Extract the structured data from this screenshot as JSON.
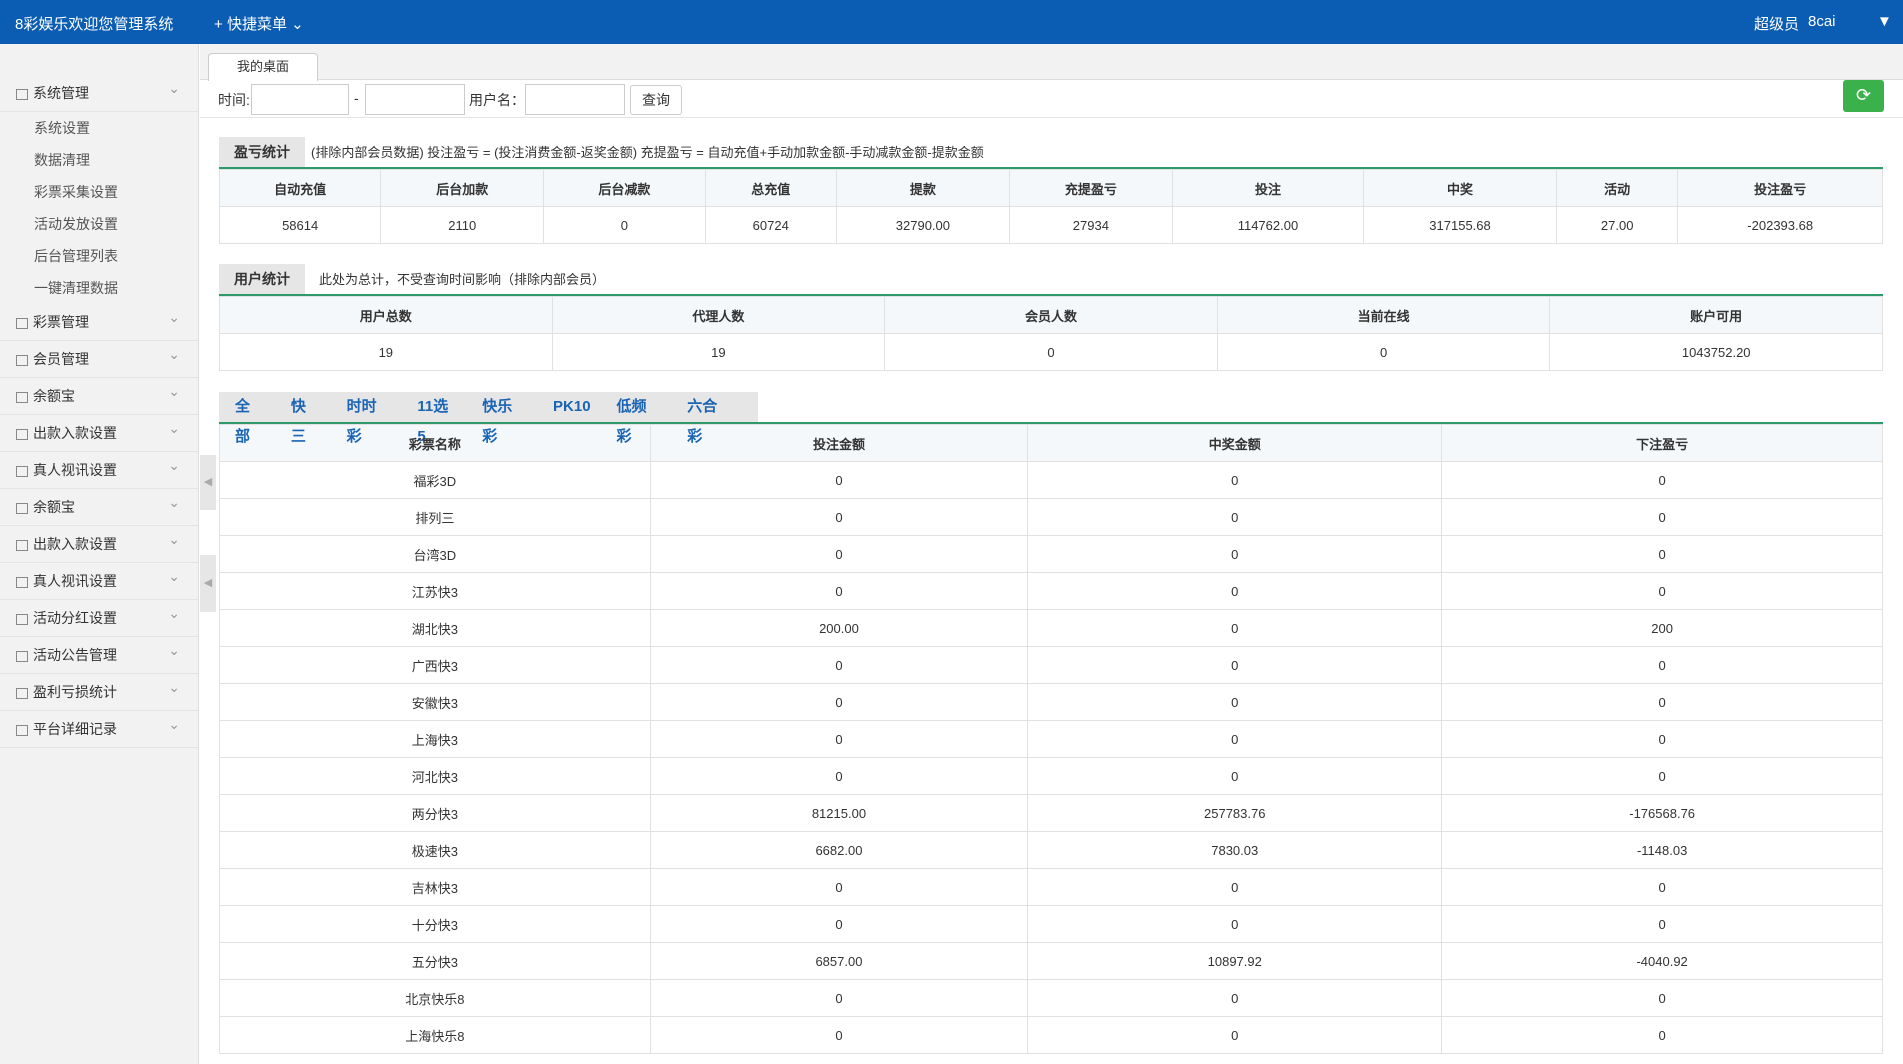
{
  "header": {
    "title": "8彩娱乐欢迎您管理系统",
    "menu": "快捷菜单",
    "user_role": "超级员",
    "username": "8cai"
  },
  "sidebar": {
    "groups": [
      {
        "label": "系统管理",
        "items": [
          "系统设置",
          "数据清理",
          "彩票采集设置",
          "活动发放设置",
          "后台管理列表",
          "一键清理数据"
        ]
      },
      {
        "label": "彩票管理"
      },
      {
        "label": "会员管理"
      },
      {
        "label": "余额宝"
      },
      {
        "label": "出款入款设置"
      },
      {
        "label": "真人视讯设置"
      },
      {
        "label": "余额宝"
      },
      {
        "label": "出款入款设置"
      },
      {
        "label": "真人视讯设置"
      },
      {
        "label": "活动分红设置"
      },
      {
        "label": "活动公告管理"
      },
      {
        "label": "盈利亏损统计"
      },
      {
        "label": "平台详细记录"
      }
    ]
  },
  "tab": "我的桌面",
  "filter": {
    "time_label": "时间:",
    "separator": "-",
    "user_label": "用户名：",
    "button": "查询"
  },
  "profit": {
    "title": "盈亏统计",
    "note": "(排除内部会员数据)  投注盈亏 = (投注消费金额-返奖金额)   充提盈亏 = 自动充值+手动加款金额-手动减款金额-提款金额",
    "columns": [
      "自动充值",
      "后台加款",
      "后台减款",
      "总充值",
      "提款",
      "充提盈亏",
      "投注",
      "中奖",
      "活动",
      "投注盈亏"
    ],
    "row": [
      "58614",
      "2110",
      "0",
      "60724",
      "32790.00",
      "27934",
      "114762.00",
      "317155.68",
      "27.00",
      "-202393.68"
    ]
  },
  "users": {
    "title": "用户统计",
    "note": "此处为总计，不受查询时间影响（排除内部会员）",
    "columns": [
      "用户总数",
      "代理人数",
      "会员人数",
      "当前在线",
      "账户可用"
    ],
    "row": [
      "19",
      "19",
      "0",
      "0",
      "1043752.20"
    ]
  },
  "lottery": {
    "tabs": [
      "全部",
      "快三",
      "时时彩",
      "11选5",
      "快乐彩",
      "PK10",
      "低频彩",
      "六合彩"
    ],
    "columns": [
      "彩票名称",
      "投注金额",
      "中奖金额",
      "下注盈亏"
    ],
    "rows": [
      [
        "福彩3D",
        "0",
        "0",
        "0"
      ],
      [
        "排列三",
        "0",
        "0",
        "0"
      ],
      [
        "台湾3D",
        "0",
        "0",
        "0"
      ],
      [
        "江苏快3",
        "0",
        "0",
        "0"
      ],
      [
        "湖北快3",
        "200.00",
        "0",
        "200"
      ],
      [
        "广西快3",
        "0",
        "0",
        "0"
      ],
      [
        "安徽快3",
        "0",
        "0",
        "0"
      ],
      [
        "上海快3",
        "0",
        "0",
        "0"
      ],
      [
        "河北快3",
        "0",
        "0",
        "0"
      ],
      [
        "两分快3",
        "81215.00",
        "257783.76",
        "-176568.76"
      ],
      [
        "极速快3",
        "6682.00",
        "7830.03",
        "-1148.03"
      ],
      [
        "吉林快3",
        "0",
        "0",
        "0"
      ],
      [
        "十分快3",
        "0",
        "0",
        "0"
      ],
      [
        "五分快3",
        "6857.00",
        "10897.92",
        "-4040.92"
      ],
      [
        "北京快乐8",
        "0",
        "0",
        "0"
      ],
      [
        "上海快乐8",
        "0",
        "0",
        "0"
      ]
    ]
  }
}
